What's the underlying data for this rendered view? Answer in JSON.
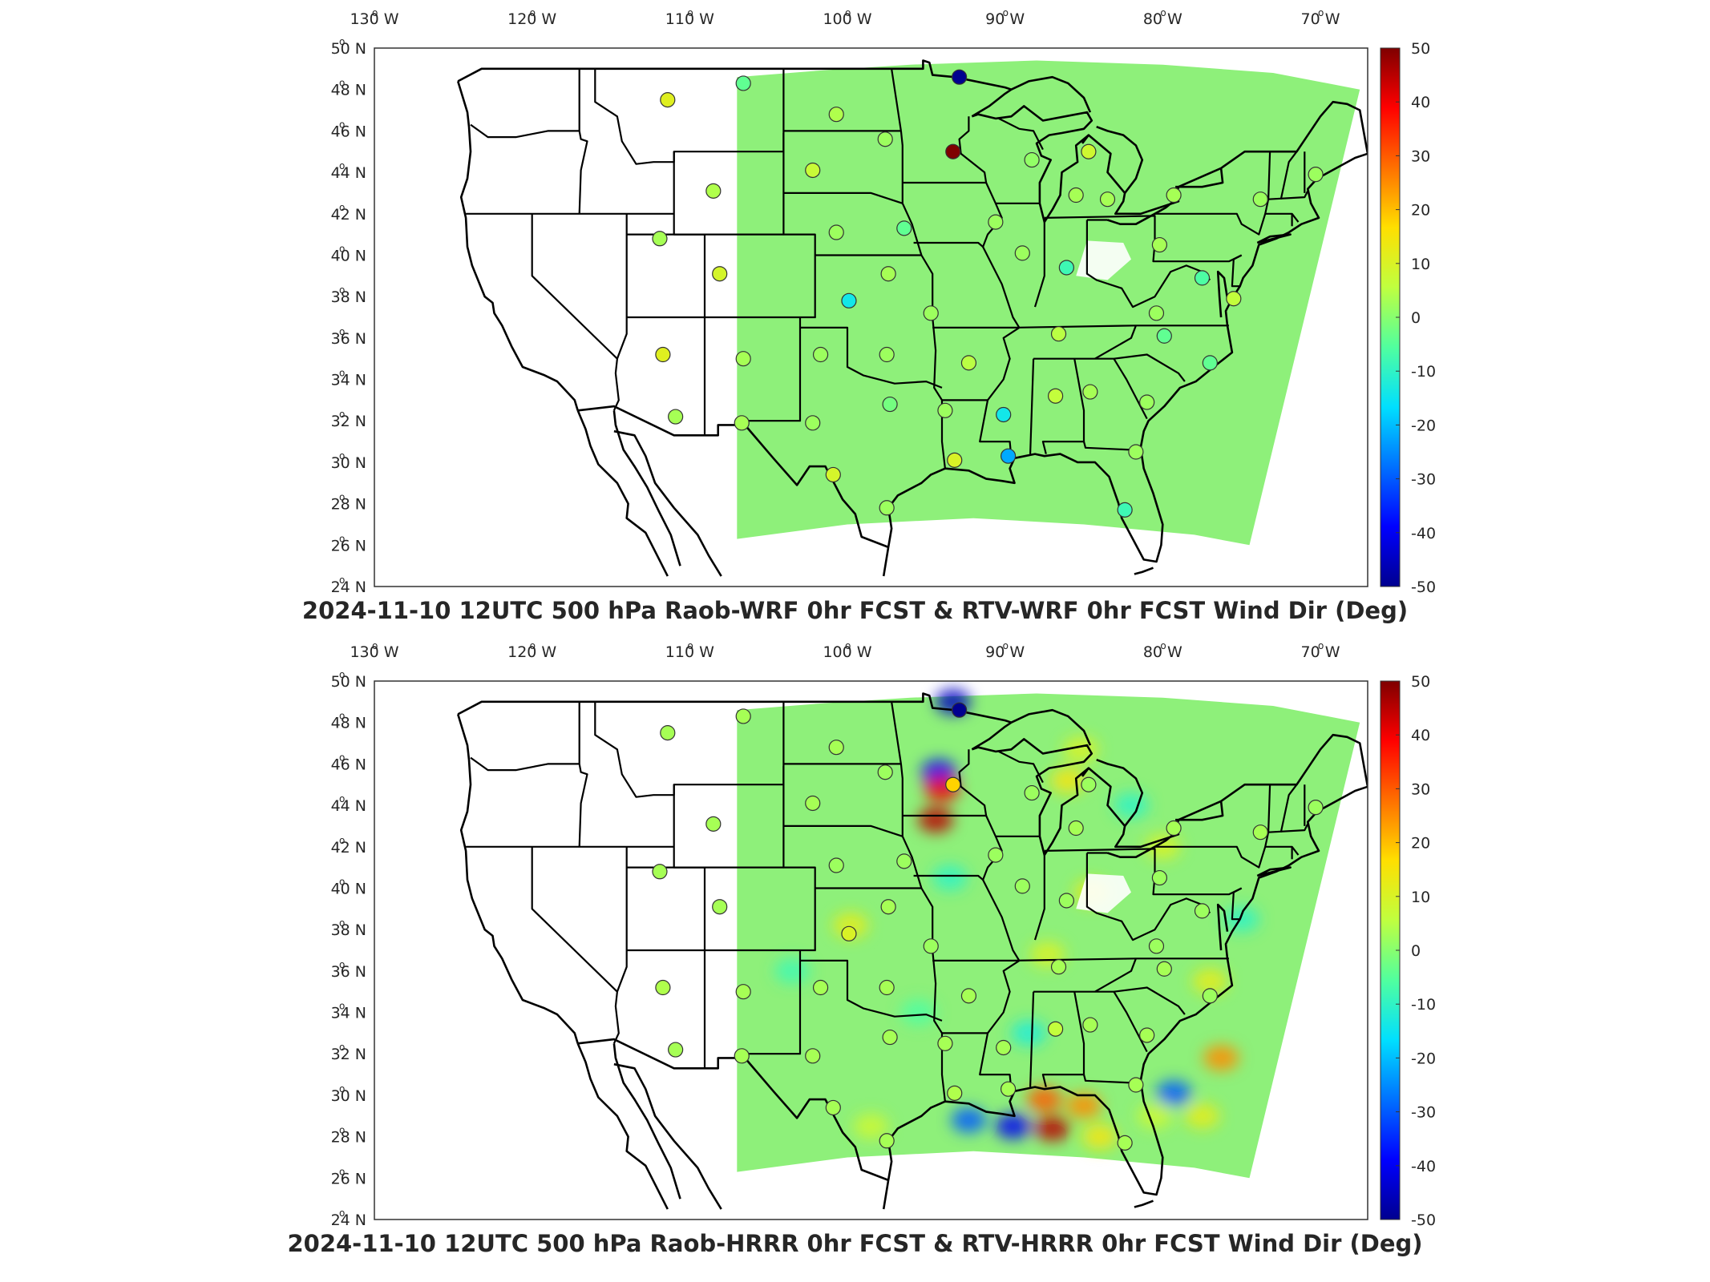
{
  "colors": {
    "field_default": "#8ef07a",
    "state_lines": "#000000",
    "station_edge": "#333333",
    "colormap": [
      "#00008f",
      "#0000ff",
      "#0070ff",
      "#00dfff",
      "#50ff9f",
      "#c0ff3f",
      "#ffdf00",
      "#ff7000",
      "#ff0000",
      "#7f0000"
    ]
  },
  "axes": {
    "lon_ticks": [
      {
        "value": -130,
        "label": "130 W"
      },
      {
        "value": -120,
        "label": "120 W"
      },
      {
        "value": -110,
        "label": "110 W"
      },
      {
        "value": -100,
        "label": "100 W"
      },
      {
        "value": -90,
        "label": "90 W"
      },
      {
        "value": -80,
        "label": "80 W"
      },
      {
        "value": -70,
        "label": "70 W"
      }
    ],
    "lat_ticks": [
      {
        "value": 50,
        "label": "50 N"
      },
      {
        "value": 48,
        "label": "48 N"
      },
      {
        "value": 46,
        "label": "46 N"
      },
      {
        "value": 44,
        "label": "44 N"
      },
      {
        "value": 42,
        "label": "42 N"
      },
      {
        "value": 40,
        "label": "40 N"
      },
      {
        "value": 38,
        "label": "38 N"
      },
      {
        "value": 36,
        "label": "36 N"
      },
      {
        "value": 34,
        "label": "34 N"
      },
      {
        "value": 32,
        "label": "32 N"
      },
      {
        "value": 30,
        "label": "30 N"
      },
      {
        "value": 28,
        "label": "28 N"
      },
      {
        "value": 26,
        "label": "26 N"
      },
      {
        "value": 24,
        "label": "24 N"
      }
    ],
    "colorbar_ticks": [
      50,
      40,
      30,
      20,
      10,
      0,
      -10,
      -20,
      -30,
      -40,
      -50
    ],
    "colorbar_range": [
      -50,
      50
    ]
  },
  "panels": [
    {
      "id": "wrf",
      "title": "2024-11-10 12UTC 500 hPa Raob-WRF 0hr FCST & RTV-WRF 0hr FCST Wind Dir (Deg)",
      "stations": [
        {
          "lon": -111.4,
          "lat": 47.5,
          "value": 11
        },
        {
          "lon": -106.6,
          "lat": 48.3,
          "value": -4
        },
        {
          "lon": -92.9,
          "lat": 48.6,
          "value": -50
        },
        {
          "lon": -100.7,
          "lat": 46.8,
          "value": 4
        },
        {
          "lon": -97.6,
          "lat": 45.6,
          "value": 2
        },
        {
          "lon": -93.3,
          "lat": 45.0,
          "value": 50
        },
        {
          "lon": -102.2,
          "lat": 44.1,
          "value": 7
        },
        {
          "lon": -108.5,
          "lat": 43.1,
          "value": 4
        },
        {
          "lon": -88.3,
          "lat": 44.6,
          "value": 1
        },
        {
          "lon": -84.7,
          "lat": 45.0,
          "value": 8
        },
        {
          "lon": -85.5,
          "lat": 42.9,
          "value": 3
        },
        {
          "lon": -83.5,
          "lat": 42.7,
          "value": 3
        },
        {
          "lon": -79.3,
          "lat": 42.9,
          "value": 3
        },
        {
          "lon": -73.8,
          "lat": 42.7,
          "value": 2
        },
        {
          "lon": -70.3,
          "lat": 43.9,
          "value": 2
        },
        {
          "lon": -111.9,
          "lat": 40.8,
          "value": 3
        },
        {
          "lon": -108.1,
          "lat": 39.1,
          "value": 9
        },
        {
          "lon": -100.7,
          "lat": 41.1,
          "value": 2
        },
        {
          "lon": -96.4,
          "lat": 41.3,
          "value": -4
        },
        {
          "lon": -90.6,
          "lat": 41.6,
          "value": 2
        },
        {
          "lon": -88.9,
          "lat": 40.1,
          "value": 2
        },
        {
          "lon": -86.1,
          "lat": 39.4,
          "value": -8
        },
        {
          "lon": -80.2,
          "lat": 40.5,
          "value": 3
        },
        {
          "lon": -97.4,
          "lat": 39.1,
          "value": 3
        },
        {
          "lon": -99.9,
          "lat": 37.8,
          "value": -14
        },
        {
          "lon": -94.7,
          "lat": 37.2,
          "value": 2
        },
        {
          "lon": -77.5,
          "lat": 38.9,
          "value": -6
        },
        {
          "lon": -75.5,
          "lat": 37.9,
          "value": 6
        },
        {
          "lon": -80.4,
          "lat": 37.2,
          "value": 2
        },
        {
          "lon": -86.6,
          "lat": 36.2,
          "value": 5
        },
        {
          "lon": -79.9,
          "lat": 36.1,
          "value": -4
        },
        {
          "lon": -111.7,
          "lat": 35.2,
          "value": 11
        },
        {
          "lon": -106.6,
          "lat": 35.0,
          "value": 3
        },
        {
          "lon": -101.7,
          "lat": 35.2,
          "value": 2
        },
        {
          "lon": -97.5,
          "lat": 35.2,
          "value": 2
        },
        {
          "lon": -92.3,
          "lat": 34.8,
          "value": 5
        },
        {
          "lon": -77.0,
          "lat": 34.8,
          "value": -4
        },
        {
          "lon": -110.9,
          "lat": 32.2,
          "value": 3
        },
        {
          "lon": -106.7,
          "lat": 31.9,
          "value": 3
        },
        {
          "lon": -102.2,
          "lat": 31.9,
          "value": 2
        },
        {
          "lon": -97.3,
          "lat": 32.8,
          "value": -2
        },
        {
          "lon": -93.8,
          "lat": 32.5,
          "value": 2
        },
        {
          "lon": -90.1,
          "lat": 32.3,
          "value": -14
        },
        {
          "lon": -86.8,
          "lat": 33.2,
          "value": 6
        },
        {
          "lon": -84.6,
          "lat": 33.4,
          "value": 3
        },
        {
          "lon": -81.0,
          "lat": 32.9,
          "value": 2
        },
        {
          "lon": -93.2,
          "lat": 30.1,
          "value": 10
        },
        {
          "lon": -89.8,
          "lat": 30.3,
          "value": -22
        },
        {
          "lon": -81.7,
          "lat": 30.5,
          "value": 2
        },
        {
          "lon": -100.9,
          "lat": 29.4,
          "value": 9
        },
        {
          "lon": -97.5,
          "lat": 27.8,
          "value": 2
        },
        {
          "lon": -82.4,
          "lat": 27.7,
          "value": -8
        }
      ]
    },
    {
      "id": "hrrr",
      "title": "2024-11-10 12UTC 500 hPa Raob-HRRR 0hr FCST & RTV-HRRR 0hr FCST Wind Dir (Deg)",
      "stations": [
        {
          "lon": -111.4,
          "lat": 47.5,
          "value": 3
        },
        {
          "lon": -106.6,
          "lat": 48.3,
          "value": 3
        },
        {
          "lon": -92.9,
          "lat": 48.6,
          "value": -50
        },
        {
          "lon": -100.7,
          "lat": 46.8,
          "value": 3
        },
        {
          "lon": -97.6,
          "lat": 45.6,
          "value": 2
        },
        {
          "lon": -93.3,
          "lat": 45.0,
          "value": 18
        },
        {
          "lon": -102.2,
          "lat": 44.1,
          "value": 3
        },
        {
          "lon": -108.5,
          "lat": 43.1,
          "value": 3
        },
        {
          "lon": -88.3,
          "lat": 44.6,
          "value": 2
        },
        {
          "lon": -84.7,
          "lat": 45.0,
          "value": 2
        },
        {
          "lon": -85.5,
          "lat": 42.9,
          "value": 3
        },
        {
          "lon": -79.3,
          "lat": 42.9,
          "value": 3
        },
        {
          "lon": -73.8,
          "lat": 42.7,
          "value": 3
        },
        {
          "lon": -70.3,
          "lat": 43.9,
          "value": 2
        },
        {
          "lon": -111.9,
          "lat": 40.8,
          "value": 3
        },
        {
          "lon": -108.1,
          "lat": 39.1,
          "value": 3
        },
        {
          "lon": -100.7,
          "lat": 41.1,
          "value": 2
        },
        {
          "lon": -96.4,
          "lat": 41.3,
          "value": 2
        },
        {
          "lon": -90.6,
          "lat": 41.6,
          "value": 2
        },
        {
          "lon": -88.9,
          "lat": 40.1,
          "value": 2
        },
        {
          "lon": -86.1,
          "lat": 39.4,
          "value": 2
        },
        {
          "lon": -80.2,
          "lat": 40.5,
          "value": 2
        },
        {
          "lon": -97.4,
          "lat": 39.1,
          "value": 3
        },
        {
          "lon": -99.9,
          "lat": 37.8,
          "value": 10
        },
        {
          "lon": -94.7,
          "lat": 37.2,
          "value": 2
        },
        {
          "lon": -77.5,
          "lat": 38.9,
          "value": 2
        },
        {
          "lon": -80.4,
          "lat": 37.2,
          "value": 2
        },
        {
          "lon": -86.6,
          "lat": 36.2,
          "value": 3
        },
        {
          "lon": -79.9,
          "lat": 36.1,
          "value": 3
        },
        {
          "lon": -111.7,
          "lat": 35.2,
          "value": 4
        },
        {
          "lon": -106.6,
          "lat": 35.0,
          "value": 3
        },
        {
          "lon": -101.7,
          "lat": 35.2,
          "value": 3
        },
        {
          "lon": -97.5,
          "lat": 35.2,
          "value": 3
        },
        {
          "lon": -92.3,
          "lat": 34.8,
          "value": 3
        },
        {
          "lon": -77.0,
          "lat": 34.8,
          "value": 2
        },
        {
          "lon": -110.9,
          "lat": 32.2,
          "value": 3
        },
        {
          "lon": -106.7,
          "lat": 31.9,
          "value": 3
        },
        {
          "lon": -102.2,
          "lat": 31.9,
          "value": 3
        },
        {
          "lon": -97.3,
          "lat": 32.8,
          "value": 3
        },
        {
          "lon": -93.8,
          "lat": 32.5,
          "value": 3
        },
        {
          "lon": -90.1,
          "lat": 32.3,
          "value": 3
        },
        {
          "lon": -86.8,
          "lat": 33.2,
          "value": 6
        },
        {
          "lon": -84.6,
          "lat": 33.4,
          "value": 3
        },
        {
          "lon": -81.0,
          "lat": 32.9,
          "value": 3
        },
        {
          "lon": -93.2,
          "lat": 30.1,
          "value": 4
        },
        {
          "lon": -89.8,
          "lat": 30.3,
          "value": 3
        },
        {
          "lon": -81.7,
          "lat": 30.5,
          "value": 3
        },
        {
          "lon": -100.9,
          "lat": 29.4,
          "value": 3
        },
        {
          "lon": -97.5,
          "lat": 27.8,
          "value": 3
        },
        {
          "lon": -82.4,
          "lat": 27.7,
          "value": 3
        }
      ],
      "anomalies": [
        {
          "lon": -94.2,
          "lat": 45.6,
          "value": -40
        },
        {
          "lon": -94.0,
          "lat": 44.8,
          "value": 40
        },
        {
          "lon": -94.4,
          "lat": 43.3,
          "value": 45
        },
        {
          "lon": -93.3,
          "lat": 49.0,
          "value": -45
        },
        {
          "lon": -92.3,
          "lat": 28.8,
          "value": -30
        },
        {
          "lon": -89.5,
          "lat": 28.5,
          "value": -40
        },
        {
          "lon": -87.0,
          "lat": 28.4,
          "value": 45
        },
        {
          "lon": -87.5,
          "lat": 29.8,
          "value": 30
        },
        {
          "lon": -85.0,
          "lat": 29.5,
          "value": 25
        },
        {
          "lon": -84.0,
          "lat": 28.0,
          "value": 15
        },
        {
          "lon": -79.3,
          "lat": 30.1,
          "value": -30
        },
        {
          "lon": -77.5,
          "lat": 29.0,
          "value": 12
        },
        {
          "lon": -76.3,
          "lat": 31.8,
          "value": 25
        },
        {
          "lon": -99.8,
          "lat": 38.2,
          "value": 12
        },
        {
          "lon": -87.3,
          "lat": 36.8,
          "value": 10
        },
        {
          "lon": -84.5,
          "lat": 39.8,
          "value": 12
        },
        {
          "lon": -80.0,
          "lat": 42.0,
          "value": 10
        },
        {
          "lon": -86.0,
          "lat": 45.2,
          "value": 15
        },
        {
          "lon": -85.2,
          "lat": 46.7,
          "value": 10
        },
        {
          "lon": -82.0,
          "lat": 44.0,
          "value": -10
        },
        {
          "lon": -88.5,
          "lat": 33.0,
          "value": -12
        },
        {
          "lon": -77.0,
          "lat": 35.5,
          "value": 12
        },
        {
          "lon": -103.5,
          "lat": 36.0,
          "value": -8
        },
        {
          "lon": -93.5,
          "lat": 40.5,
          "value": -10
        },
        {
          "lon": -95.5,
          "lat": 34.0,
          "value": -6
        },
        {
          "lon": -98.5,
          "lat": 28.5,
          "value": 8
        },
        {
          "lon": -75.0,
          "lat": 38.5,
          "value": -10
        },
        {
          "lon": -80.5,
          "lat": 29.0,
          "value": 8
        }
      ]
    }
  ]
}
